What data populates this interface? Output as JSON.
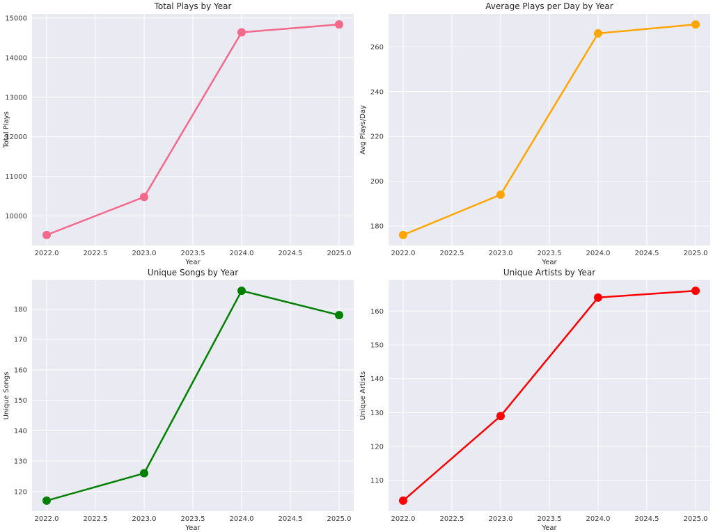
{
  "figure_style": {
    "background": "#ffffff",
    "axes_background": "#eaeaf2",
    "grid_color": "#ffffff",
    "text_color": "#262626",
    "tick_label_color": "#3b3b3b"
  },
  "chart_data": [
    {
      "type": "line",
      "title": "Total Plays by Year",
      "xlabel": "Year",
      "ylabel": "Total Plays",
      "color": "#f4688a",
      "x": [
        2022,
        2023,
        2024,
        2025
      ],
      "values": [
        9520,
        10480,
        14640,
        14840
      ],
      "xlim": [
        2021.85,
        2025.15
      ],
      "ylim": [
        9254,
        15106
      ],
      "xticks": {
        "positions": [
          2022.0,
          2022.5,
          2023.0,
          2023.5,
          2024.0,
          2024.5,
          2025.0
        ],
        "labels": [
          "2022.0",
          "2022.5",
          "2023.0",
          "2023.5",
          "2024.0",
          "2024.5",
          "2025.0"
        ]
      },
      "yticks": {
        "positions": [
          10000,
          11000,
          12000,
          13000,
          14000,
          15000
        ],
        "labels": [
          "10000",
          "11000",
          "12000",
          "13000",
          "14000",
          "15000"
        ]
      },
      "grid": true,
      "marker": "o"
    },
    {
      "type": "line",
      "title": "Average Plays per Day by Year",
      "xlabel": "Year",
      "ylabel": "Avg Plays/Day",
      "color": "#ffa500",
      "x": [
        2022,
        2023,
        2024,
        2025
      ],
      "values": [
        176,
        194,
        266,
        270
      ],
      "xlim": [
        2021.85,
        2025.15
      ],
      "ylim": [
        171.3,
        274.7
      ],
      "xticks": {
        "positions": [
          2022.0,
          2022.5,
          2023.0,
          2023.5,
          2024.0,
          2024.5,
          2025.0
        ],
        "labels": [
          "2022.0",
          "2022.5",
          "2023.0",
          "2023.5",
          "2024.0",
          "2024.5",
          "2025.0"
        ]
      },
      "yticks": {
        "positions": [
          180,
          200,
          220,
          240,
          260
        ],
        "labels": [
          "180",
          "200",
          "220",
          "240",
          "260"
        ]
      },
      "grid": true,
      "marker": "o"
    },
    {
      "type": "line",
      "title": "Unique Songs by Year",
      "xlabel": "Year",
      "ylabel": "Unique Songs",
      "color": "#008000",
      "x": [
        2022,
        2023,
        2024,
        2025
      ],
      "values": [
        117,
        126,
        186,
        178
      ],
      "xlim": [
        2021.85,
        2025.15
      ],
      "ylim": [
        113.55,
        189.45
      ],
      "xticks": {
        "positions": [
          2022.0,
          2022.5,
          2023.0,
          2023.5,
          2024.0,
          2024.5,
          2025.0
        ],
        "labels": [
          "2022.0",
          "2022.5",
          "2023.0",
          "2023.5",
          "2024.0",
          "2024.5",
          "2025.0"
        ]
      },
      "yticks": {
        "positions": [
          120,
          130,
          140,
          150,
          160,
          170,
          180
        ],
        "labels": [
          "120",
          "130",
          "140",
          "150",
          "160",
          "170",
          "180"
        ]
      },
      "grid": true,
      "marker": "o"
    },
    {
      "type": "line",
      "title": "Unique Artists by Year",
      "xlabel": "Year",
      "ylabel": "Unique Artists",
      "color": "#ff0000",
      "x": [
        2022,
        2023,
        2024,
        2025
      ],
      "values": [
        104,
        129,
        164,
        166
      ],
      "xlim": [
        2021.85,
        2025.15
      ],
      "ylim": [
        100.9,
        169.1
      ],
      "xticks": {
        "positions": [
          2022.0,
          2022.5,
          2023.0,
          2023.5,
          2024.0,
          2024.5,
          2025.0
        ],
        "labels": [
          "2022.0",
          "2022.5",
          "2023.0",
          "2023.5",
          "2024.0",
          "2024.5",
          "2025.0"
        ]
      },
      "yticks": {
        "positions": [
          110,
          120,
          130,
          140,
          150,
          160
        ],
        "labels": [
          "110",
          "120",
          "130",
          "140",
          "150",
          "160"
        ]
      },
      "grid": true,
      "marker": "o"
    }
  ]
}
